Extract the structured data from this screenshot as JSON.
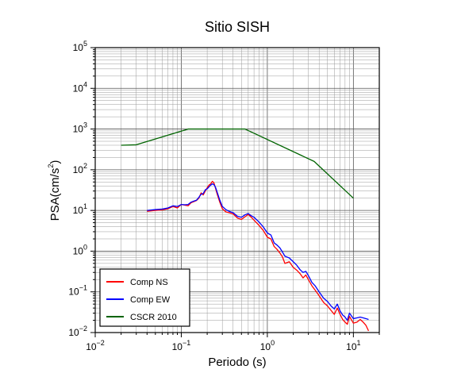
{
  "chart_data": {
    "type": "line",
    "title": "Sitio SISH",
    "xlabel": "Periodo (s)",
    "ylabel": "PSA(cm/s²)",
    "ylabel_base": "PSA(cm/s",
    "ylabel_exp": "2",
    "ylabel_end": ")",
    "x_scale": "log",
    "y_scale": "log",
    "xlim": [
      0.01,
      20
    ],
    "ylim": [
      0.01,
      100000
    ],
    "grid": true,
    "legend_position": "bottom-left",
    "x_ticks": [
      {
        "base": "10",
        "exp": "−2",
        "value": 0.01
      },
      {
        "base": "10",
        "exp": "−1",
        "value": 0.1
      },
      {
        "base": "10",
        "exp": "0",
        "value": 1
      },
      {
        "base": "10",
        "exp": "1",
        "value": 10
      }
    ],
    "y_ticks": [
      {
        "base": "10",
        "exp": "−2",
        "value": 0.01
      },
      {
        "base": "10",
        "exp": "−1",
        "value": 0.1
      },
      {
        "base": "10",
        "exp": "0",
        "value": 1
      },
      {
        "base": "10",
        "exp": "1",
        "value": 10
      },
      {
        "base": "10",
        "exp": "2",
        "value": 100
      },
      {
        "base": "10",
        "exp": "3",
        "value": 1000
      },
      {
        "base": "10",
        "exp": "4",
        "value": 10000
      },
      {
        "base": "10",
        "exp": "5",
        "value": 100000
      }
    ],
    "series": [
      {
        "name": "Comp NS",
        "color": "#ff0000",
        "x": [
          0.04,
          0.05,
          0.06,
          0.07,
          0.08,
          0.09,
          0.1,
          0.11,
          0.12,
          0.13,
          0.14,
          0.15,
          0.16,
          0.17,
          0.18,
          0.19,
          0.2,
          0.21,
          0.22,
          0.23,
          0.24,
          0.25,
          0.26,
          0.28,
          0.3,
          0.33,
          0.36,
          0.4,
          0.45,
          0.5,
          0.55,
          0.6,
          0.65,
          0.7,
          0.8,
          0.9,
          1.0,
          1.1,
          1.2,
          1.3,
          1.4,
          1.5,
          1.6,
          1.8,
          2.0,
          2.2,
          2.4,
          2.6,
          2.8,
          3.0,
          3.3,
          3.6,
          4.0,
          4.5,
          5.0,
          5.5,
          6.0,
          6.5,
          7.0,
          7.5,
          8.0,
          8.5,
          9.0,
          10.0,
          11.0,
          12.0,
          13.0,
          14.0,
          15.0
        ],
        "values": [
          9.5,
          10.0,
          10.3,
          11.0,
          12.5,
          11.5,
          14.0,
          13.5,
          13.0,
          15.5,
          16.5,
          17.5,
          20.0,
          27.0,
          24.0,
          30.0,
          36.0,
          42.0,
          45.0,
          52.0,
          47.0,
          35.0,
          26.0,
          16.0,
          11.0,
          9.2,
          8.8,
          8.2,
          6.5,
          6.0,
          7.0,
          8.0,
          6.8,
          5.8,
          4.3,
          3.2,
          2.2,
          2.0,
          1.3,
          1.1,
          0.9,
          0.72,
          0.5,
          0.55,
          0.4,
          0.34,
          0.28,
          0.22,
          0.26,
          0.2,
          0.14,
          0.11,
          0.08,
          0.055,
          0.045,
          0.035,
          0.028,
          0.04,
          0.028,
          0.021,
          0.018,
          0.016,
          0.025,
          0.017,
          0.018,
          0.021,
          0.018,
          0.015,
          0.011
        ]
      },
      {
        "name": "Comp EW",
        "color": "#0000ff",
        "x": [
          0.04,
          0.05,
          0.06,
          0.07,
          0.08,
          0.09,
          0.1,
          0.11,
          0.12,
          0.13,
          0.14,
          0.15,
          0.16,
          0.17,
          0.18,
          0.19,
          0.2,
          0.21,
          0.22,
          0.23,
          0.24,
          0.25,
          0.26,
          0.28,
          0.3,
          0.33,
          0.36,
          0.4,
          0.45,
          0.5,
          0.55,
          0.6,
          0.65,
          0.7,
          0.8,
          0.9,
          1.0,
          1.1,
          1.2,
          1.3,
          1.4,
          1.5,
          1.6,
          1.8,
          2.0,
          2.2,
          2.4,
          2.6,
          2.8,
          3.0,
          3.3,
          3.6,
          4.0,
          4.5,
          5.0,
          5.5,
          6.0,
          6.5,
          7.0,
          7.5,
          8.0,
          8.5,
          9.0,
          10.0,
          11.0,
          12.0,
          13.0,
          14.0,
          15.0
        ],
        "values": [
          10.0,
          10.5,
          10.8,
          11.5,
          13.0,
          12.5,
          14.0,
          13.8,
          14.0,
          16.0,
          17.0,
          17.8,
          21.0,
          25.0,
          26.0,
          32.0,
          34.0,
          38.0,
          42.0,
          45.0,
          43.0,
          37.0,
          29.0,
          18.0,
          12.5,
          10.5,
          9.5,
          8.8,
          7.2,
          6.8,
          7.8,
          8.4,
          7.4,
          6.8,
          5.2,
          3.9,
          2.8,
          2.5,
          1.6,
          1.4,
          1.2,
          0.95,
          0.75,
          0.68,
          0.55,
          0.45,
          0.35,
          0.3,
          0.32,
          0.25,
          0.17,
          0.14,
          0.1,
          0.07,
          0.058,
          0.045,
          0.038,
          0.05,
          0.034,
          0.027,
          0.024,
          0.02,
          0.03,
          0.022,
          0.023,
          0.024,
          0.023,
          0.022,
          0.021
        ]
      },
      {
        "name": "CSCR 2010",
        "color": "#006400",
        "x": [
          0.02,
          0.03,
          0.12,
          0.55,
          3.5,
          10.0
        ],
        "values": [
          400,
          410,
          1000,
          1000,
          160,
          20
        ]
      }
    ]
  }
}
